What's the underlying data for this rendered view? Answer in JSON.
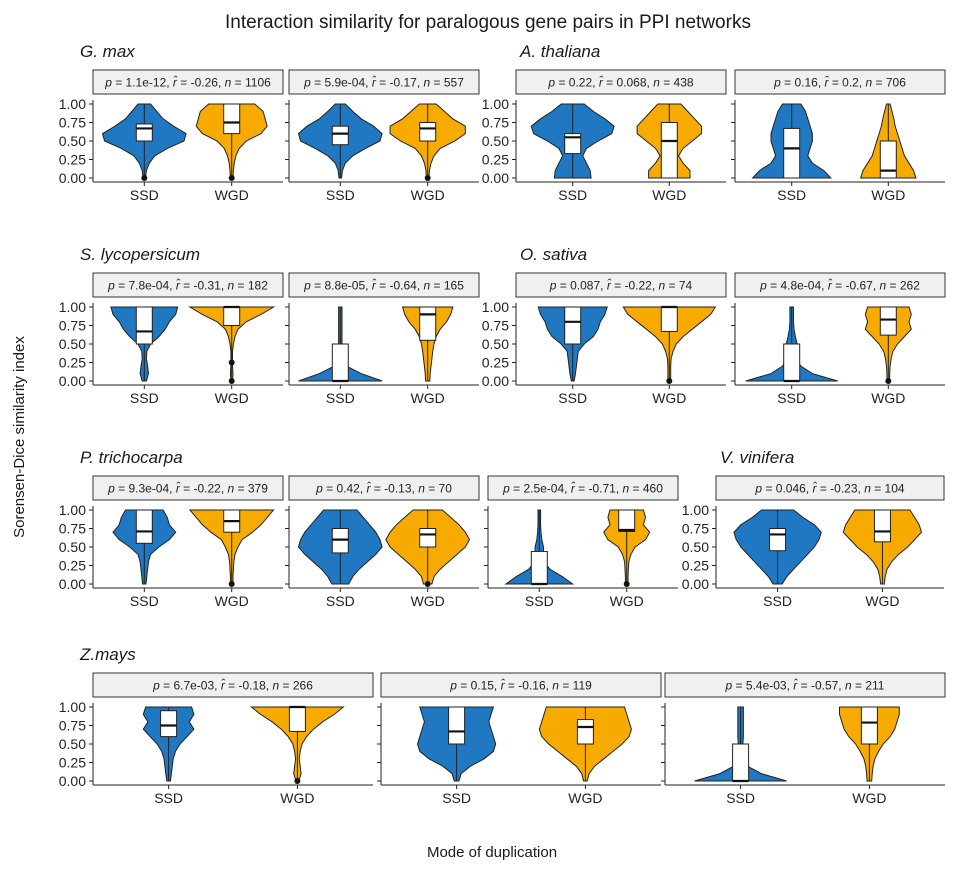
{
  "title": "Interaction similarity for paralogous gene pairs in PPI networks",
  "ylabel": "Sorensen-Dice similarity index",
  "xlabel": "Mode of duplication",
  "colors": {
    "SSD": "#1f78c1",
    "WGD": "#f7aa00",
    "strip": "#f0f0f0",
    "box": "#ffffff"
  },
  "chart_data": {
    "type": "violin",
    "ylim": [
      0,
      1
    ],
    "yticks": [
      "0.00",
      "0.25",
      "0.50",
      "0.75",
      "1.00"
    ],
    "groups": [
      "SSD",
      "WGD"
    ],
    "species": [
      {
        "name": "G. max",
        "panels": [
          {
            "p": "1.1e-12",
            "r": "-0.26",
            "n": "1106",
            "SSD": {
              "q1": 0.5,
              "median": 0.67,
              "q3": 0.73,
              "outliers": [
                0.0
              ],
              "density": [
                0.03,
                0.05,
                0.12,
                0.25,
                0.55,
                0.95,
                1.0,
                0.7,
                0.45,
                0.3,
                0.15
              ]
            },
            "WGD": {
              "q1": 0.6,
              "median": 0.75,
              "q3": 1.0,
              "outliers": [
                0.0
              ],
              "density": [
                0.03,
                0.04,
                0.06,
                0.1,
                0.18,
                0.35,
                0.7,
                0.85,
                0.8,
                0.75,
                0.55
              ]
            }
          },
          {
            "p": "5.9e-04",
            "r": "-0.17",
            "n": "557",
            "SSD": {
              "q1": 0.45,
              "median": 0.6,
              "q3": 0.7,
              "outliers": [],
              "density": [
                0.03,
                0.05,
                0.12,
                0.3,
                0.6,
                0.95,
                1.0,
                0.8,
                0.5,
                0.3,
                0.12
              ]
            },
            "WGD": {
              "q1": 0.5,
              "median": 0.67,
              "q3": 0.75,
              "outliers": [
                0.0
              ],
              "density": [
                0.03,
                0.04,
                0.08,
                0.15,
                0.3,
                0.65,
                0.9,
                0.9,
                0.6,
                0.4,
                0.2
              ]
            }
          }
        ]
      },
      {
        "name": "A. thaliana",
        "panels": [
          {
            "p": "0.22",
            "r": "0.068",
            "n": "438",
            "SSD": {
              "q1": 0.33,
              "median": 0.55,
              "q3": 0.6,
              "outliers": [],
              "density": [
                0.4,
                0.38,
                0.3,
                0.22,
                0.3,
                0.55,
                0.85,
                0.9,
                0.7,
                0.45,
                0.25
              ]
            },
            "WGD": {
              "q1": 0.0,
              "median": 0.5,
              "q3": 0.75,
              "outliers": [],
              "density": [
                0.45,
                0.45,
                0.3,
                0.2,
                0.3,
                0.5,
                0.7,
                0.7,
                0.55,
                0.4,
                0.25
              ]
            }
          },
          {
            "p": "0.16",
            "r": "0.2",
            "n": "706",
            "SSD": {
              "q1": 0.0,
              "median": 0.4,
              "q3": 0.67,
              "outliers": [],
              "density": [
                0.85,
                0.7,
                0.45,
                0.35,
                0.4,
                0.45,
                0.45,
                0.4,
                0.35,
                0.3,
                0.2
              ]
            },
            "WGD": {
              "q1": 0.0,
              "median": 0.1,
              "q3": 0.5,
              "outliers": [],
              "density": [
                0.6,
                0.55,
                0.45,
                0.35,
                0.3,
                0.25,
                0.2,
                0.15,
                0.12,
                0.08,
                0.04
              ]
            }
          }
        ]
      },
      {
        "name": "S. lycopersicum",
        "panels": [
          {
            "p": "7.8e-04",
            "r": "-0.31",
            "n": "182",
            "SSD": {
              "q1": 0.5,
              "median": 0.67,
              "q3": 1.0,
              "outliers": [],
              "density": [
                0.05,
                0.1,
                0.08,
                0.05,
                0.06,
                0.15,
                0.35,
                0.5,
                0.6,
                0.75,
                0.8
              ]
            },
            "WGD": {
              "q1": 0.75,
              "median": 1.0,
              "q3": 1.0,
              "outliers": [
                0.0,
                0.25
              ],
              "density": [
                0.02,
                0.03,
                0.02,
                0.02,
                0.02,
                0.04,
                0.08,
                0.15,
                0.35,
                0.7,
                1.0
              ]
            }
          },
          {
            "p": "8.8e-05",
            "r": "-0.64",
            "n": "165",
            "SSD": {
              "q1": 0.0,
              "median": 0.0,
              "q3": 0.5,
              "outliers": [],
              "density": [
                1.0,
                0.5,
                0.15,
                0.06,
                0.04,
                0.04,
                0.04,
                0.04,
                0.04,
                0.04,
                0.04
              ]
            },
            "WGD": {
              "q1": 0.55,
              "median": 0.9,
              "q3": 1.0,
              "outliers": [],
              "density": [
                0.05,
                0.06,
                0.08,
                0.1,
                0.12,
                0.15,
                0.2,
                0.3,
                0.45,
                0.55,
                0.6
              ]
            }
          }
        ]
      },
      {
        "name": "O. sativa",
        "panels": [
          {
            "p": "0.087",
            "r": "-0.22",
            "n": "74",
            "SSD": {
              "q1": 0.5,
              "median": 0.8,
              "q3": 1.0,
              "outliers": [],
              "density": [
                0.03,
                0.06,
                0.08,
                0.1,
                0.12,
                0.25,
                0.45,
                0.55,
                0.6,
                0.7,
                0.75
              ]
            },
            "WGD": {
              "q1": 0.67,
              "median": 1.0,
              "q3": 1.0,
              "outliers": [
                0.0
              ],
              "density": [
                0.03,
                0.03,
                0.03,
                0.04,
                0.08,
                0.15,
                0.3,
                0.5,
                0.7,
                0.9,
                1.0
              ]
            }
          },
          {
            "p": "4.8e-04",
            "r": "-0.67",
            "n": "262",
            "SSD": {
              "q1": 0.0,
              "median": 0.0,
              "q3": 0.5,
              "outliers": [],
              "density": [
                1.0,
                0.45,
                0.2,
                0.1,
                0.1,
                0.12,
                0.08,
                0.05,
                0.04,
                0.04,
                0.04
              ]
            },
            "WGD": {
              "q1": 0.62,
              "median": 0.83,
              "q3": 1.0,
              "outliers": [
                0.0
              ],
              "density": [
                0.03,
                0.03,
                0.04,
                0.06,
                0.1,
                0.2,
                0.35,
                0.5,
                0.45,
                0.5,
                0.45
              ]
            }
          }
        ]
      },
      {
        "name": "P. trichocarpa",
        "panels": [
          {
            "p": "9.3e-04",
            "r": "-0.22",
            "n": "379",
            "SSD": {
              "q1": 0.55,
              "median": 0.71,
              "q3": 1.0,
              "outliers": [],
              "density": [
                0.04,
                0.06,
                0.08,
                0.1,
                0.15,
                0.35,
                0.6,
                0.75,
                0.6,
                0.55,
                0.45
              ]
            },
            "WGD": {
              "q1": 0.7,
              "median": 0.85,
              "q3": 1.0,
              "outliers": [
                0.0
              ],
              "density": [
                0.03,
                0.03,
                0.04,
                0.05,
                0.08,
                0.15,
                0.25,
                0.5,
                0.7,
                0.85,
                1.0
              ]
            }
          },
          {
            "p": "0.42",
            "r": "-0.13",
            "n": "70",
            "SSD": {
              "q1": 0.42,
              "median": 0.6,
              "q3": 0.75,
              "outliers": [],
              "density": [
                0.2,
                0.3,
                0.45,
                0.65,
                0.85,
                1.0,
                0.95,
                0.85,
                0.7,
                0.55,
                0.4
              ]
            },
            "WGD": {
              "q1": 0.5,
              "median": 0.67,
              "q3": 0.75,
              "outliers": [
                0.0
              ],
              "density": [
                0.1,
                0.15,
                0.3,
                0.5,
                0.7,
                0.9,
                1.0,
                0.9,
                0.75,
                0.55,
                0.35
              ]
            }
          },
          {
            "p": "2.5e-04",
            "r": "-0.71",
            "n": "460",
            "SSD": {
              "q1": 0.0,
              "median": 0.0,
              "q3": 0.44,
              "outliers": [],
              "density": [
                0.8,
                0.55,
                0.25,
                0.12,
                0.1,
                0.1,
                0.06,
                0.04,
                0.03,
                0.03,
                0.03
              ]
            },
            "WGD": {
              "q1": 0.71,
              "median": 0.73,
              "q3": 1.0,
              "outliers": [
                0.0
              ],
              "density": [
                0.03,
                0.03,
                0.04,
                0.05,
                0.1,
                0.2,
                0.45,
                0.55,
                0.4,
                0.45,
                0.4
              ]
            }
          }
        ]
      },
      {
        "name": "V. vinifera",
        "panels": [
          {
            "p": "0.046",
            "r": "-0.23",
            "n": "104",
            "SSD": {
              "q1": 0.45,
              "median": 0.67,
              "q3": 0.75,
              "outliers": [],
              "density": [
                0.1,
                0.2,
                0.35,
                0.5,
                0.65,
                0.8,
                0.9,
                0.95,
                0.8,
                0.55,
                0.35
              ]
            },
            "WGD": {
              "q1": 0.57,
              "median": 0.71,
              "q3": 1.0,
              "outliers": [],
              "density": [
                0.04,
                0.06,
                0.1,
                0.2,
                0.35,
                0.55,
                0.7,
                0.85,
                0.8,
                0.7,
                0.6
              ]
            }
          }
        ]
      },
      {
        "name": "Z.mays",
        "panels": [
          {
            "p": "6.7e-03",
            "r": "-0.18",
            "n": "266",
            "SSD": {
              "q1": 0.6,
              "median": 0.75,
              "q3": 0.95,
              "outliers": [],
              "density": [
                0.04,
                0.06,
                0.08,
                0.1,
                0.15,
                0.25,
                0.4,
                0.55,
                0.45,
                0.55,
                0.5
              ]
            },
            "WGD": {
              "q1": 0.67,
              "median": 1.0,
              "q3": 1.0,
              "outliers": [
                0.0
              ],
              "density": [
                0.03,
                0.08,
                0.06,
                0.04,
                0.06,
                0.1,
                0.2,
                0.35,
                0.55,
                0.8,
                1.0
              ]
            }
          },
          {
            "p": "0.15",
            "r": "-0.16",
            "n": "119",
            "SSD": {
              "q1": 0.5,
              "median": 0.67,
              "q3": 1.0,
              "outliers": [],
              "density": [
                0.05,
                0.1,
                0.3,
                0.6,
                0.8,
                0.85,
                0.8,
                0.75,
                0.7,
                0.75,
                0.8
              ]
            },
            "WGD": {
              "q1": 0.5,
              "median": 0.73,
              "q3": 0.83,
              "outliers": [],
              "density": [
                0.04,
                0.08,
                0.2,
                0.4,
                0.6,
                0.8,
                0.95,
                1.0,
                0.95,
                0.9,
                0.85
              ]
            }
          },
          {
            "p": "5.4e-03",
            "r": "-0.57",
            "n": "211",
            "SSD": {
              "q1": 0.0,
              "median": 0.0,
              "q3": 0.5,
              "outliers": [],
              "density": [
                1.0,
                0.45,
                0.15,
                0.06,
                0.04,
                0.05,
                0.06,
                0.06,
                0.06,
                0.06,
                0.06
              ]
            },
            "WGD": {
              "q1": 0.5,
              "median": 0.79,
              "q3": 1.0,
              "outliers": [],
              "density": [
                0.05,
                0.06,
                0.08,
                0.12,
                0.2,
                0.3,
                0.45,
                0.55,
                0.6,
                0.65,
                0.65
              ]
            }
          }
        ]
      }
    ]
  }
}
